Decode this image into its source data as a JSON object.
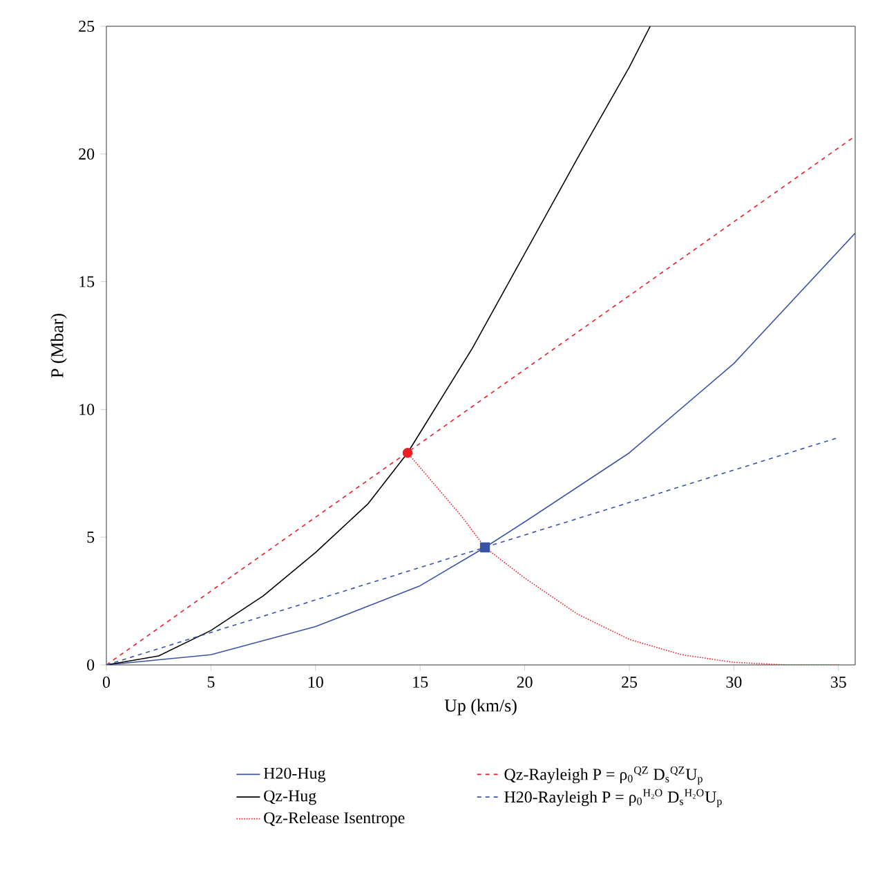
{
  "chart_data": {
    "type": "line",
    "xlabel": "Up (km/s)",
    "ylabel": "P (Mbar)",
    "xlim": [
      0,
      35.8
    ],
    "ylim": [
      0,
      25
    ],
    "xticks": [
      0,
      5,
      10,
      15,
      20,
      25,
      30,
      35
    ],
    "yticks": [
      0,
      5,
      10,
      15,
      20,
      25
    ],
    "grid": false,
    "legend": "bottom",
    "marker": "none",
    "series": [
      {
        "name": "H20-Hug",
        "color": "#3a53a4",
        "line_style": "solid",
        "x": [
          0,
          5,
          10,
          15,
          18.1,
          20,
          25,
          30,
          35.8
        ],
        "values": [
          0,
          0.4,
          1.5,
          3.1,
          4.6,
          5.6,
          8.3,
          11.8,
          16.9
        ]
      },
      {
        "name": "Qz-Rayleigh P = ρ$_{0}$$^{QZ}$ D$_{s}$$^{QZ}$U$_{p}$",
        "color": "#ee1c25",
        "line_style": "dashed",
        "x": [
          0,
          35.8
        ],
        "values": [
          0,
          20.7
        ]
      },
      {
        "name": "Qz-Hug",
        "color": "#000000",
        "line_style": "solid",
        "x": [
          0,
          2.5,
          5,
          7.5,
          10,
          12.5,
          14.4,
          17.5,
          20,
          22.5,
          25,
          26
        ],
        "values": [
          0,
          0.35,
          1.35,
          2.7,
          4.4,
          6.3,
          8.3,
          12.4,
          16.1,
          19.8,
          23.4,
          25
        ]
      },
      {
        "name": "H20-Rayleigh P = ρ$_{0}$$^{H₂O}$ D$_{s}$$^{H₂O}$U$_{p}$",
        "color": "#3a53a4",
        "line_style": "dashed",
        "x": [
          0,
          35
        ],
        "values": [
          0,
          8.9
        ]
      },
      {
        "name": "Qz-Release Isentrope",
        "color": "#ee1c25",
        "line_style": "dotted",
        "x": [
          14.4,
          17,
          18.1,
          20,
          22.5,
          25,
          27.5,
          30,
          32.5,
          35
        ],
        "values": [
          8.3,
          5.8,
          4.6,
          3.4,
          2.0,
          1.0,
          0.4,
          0.1,
          0,
          0
        ]
      },
      {
        "type": "scatter",
        "marker": "circle",
        "color": "#ee1c25",
        "x": [
          14.4
        ],
        "values": [
          8.3
        ]
      },
      {
        "type": "scatter",
        "marker": "square",
        "color": "#3a53a4",
        "x": [
          18.1
        ],
        "values": [
          4.6
        ]
      }
    ]
  }
}
